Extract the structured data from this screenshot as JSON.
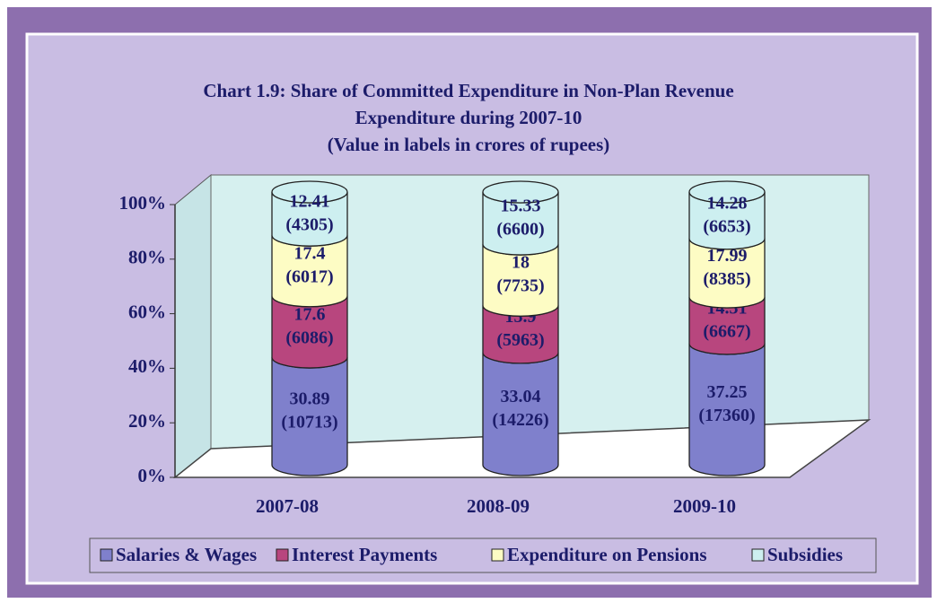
{
  "chart_data": {
    "type": "stacked_cylinder",
    "stacking": "percent",
    "title": [
      "Chart 1.9: Share of Committed Expenditure in Non-Plan Revenue",
      "Expenditure during 2007-10",
      "(Value in labels in crores of rupees)"
    ],
    "categories": [
      "2007-08",
      "2008-09",
      "2009-10"
    ],
    "series": [
      {
        "name": "Salaries & Wages",
        "color": "#7f80cc",
        "values": [
          30.89,
          33.04,
          37.25
        ],
        "amounts": [
          10713,
          14226,
          17360
        ],
        "amount_labels": [
          "(10713)",
          "(14226)",
          "(17360)"
        ]
      },
      {
        "name": "Interest Payments",
        "color": "#b8467e",
        "values": [
          17.6,
          13.9,
          14.31
        ],
        "amounts": [
          6086,
          5963,
          6667
        ],
        "amount_labels": [
          "(6086)",
          "(5963)",
          "(6667)"
        ]
      },
      {
        "name": "Expenditure on Pensions",
        "color": "#fdfcc4",
        "values": [
          17.4,
          18,
          17.99
        ],
        "amounts": [
          6017,
          7735,
          8385
        ],
        "amount_labels": [
          "(6017)",
          "(7735)",
          "(8385)"
        ]
      },
      {
        "name": "Subsidies",
        "color": "#cdeff0",
        "values": [
          12.41,
          15.33,
          14.28
        ],
        "amounts": [
          4305,
          6600,
          6653
        ],
        "amount_labels": [
          "(4305)",
          "(6600)",
          "(6653)"
        ]
      }
    ],
    "ylim": [
      0,
      100
    ],
    "yticks": [
      {
        "value": 0,
        "label": "0%"
      },
      {
        "value": 20,
        "label": "20%"
      },
      {
        "value": 40,
        "label": "40%"
      },
      {
        "value": 60,
        "label": "60%"
      },
      {
        "value": 80,
        "label": "80%"
      },
      {
        "value": 100,
        "label": "100%"
      }
    ],
    "legend": "bottom"
  }
}
